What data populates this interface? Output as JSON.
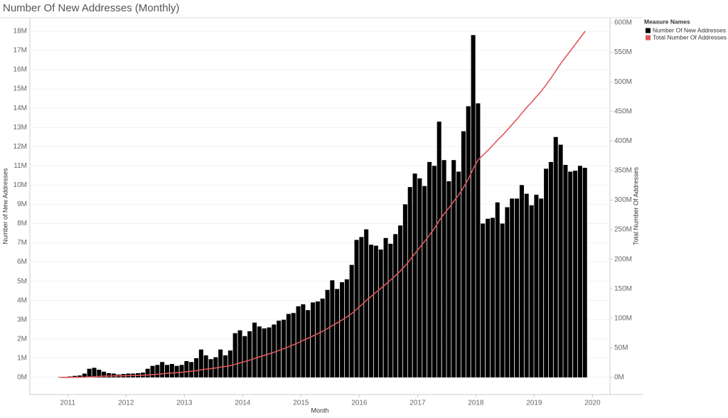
{
  "chart_data": {
    "type": "bar",
    "title": "Number Of New Addresses (Monthly)",
    "x_label": "Month",
    "y_label": "Number of New Addresses",
    "y2_label": "Total Number Of Addresses",
    "legend_title": "Measure Names",
    "legend": "right",
    "grid": true,
    "x": [
      2010.833,
      2010.917,
      2011,
      2011.083,
      2011.167,
      2011.25,
      2011.333,
      2011.417,
      2011.5,
      2011.583,
      2011.667,
      2011.75,
      2011.833,
      2011.917,
      2012,
      2012.083,
      2012.167,
      2012.25,
      2012.333,
      2012.417,
      2012.5,
      2012.583,
      2012.667,
      2012.75,
      2012.833,
      2012.917,
      2013,
      2013.083,
      2013.167,
      2013.25,
      2013.333,
      2013.417,
      2013.5,
      2013.583,
      2013.667,
      2013.75,
      2013.833,
      2013.917,
      2014,
      2014.083,
      2014.167,
      2014.25,
      2014.333,
      2014.417,
      2014.5,
      2014.583,
      2014.667,
      2014.75,
      2014.833,
      2014.917,
      2015,
      2015.083,
      2015.167,
      2015.25,
      2015.333,
      2015.417,
      2015.5,
      2015.583,
      2015.667,
      2015.75,
      2015.833,
      2015.917,
      2016,
      2016.083,
      2016.167,
      2016.25,
      2016.333,
      2016.417,
      2016.5,
      2016.583,
      2016.667,
      2016.75,
      2016.833,
      2016.917,
      2017,
      2017.083,
      2017.167,
      2017.25,
      2017.333,
      2017.417,
      2017.5,
      2017.583,
      2017.667,
      2017.75,
      2017.833,
      2017.917,
      2018,
      2018.083,
      2018.167,
      2018.25,
      2018.333,
      2018.417,
      2018.5,
      2018.583,
      2018.667,
      2018.75,
      2018.833,
      2018.917,
      2019,
      2019.083,
      2019.167,
      2019.25,
      2019.333,
      2019.417,
      2019.5,
      2019.583,
      2019.667,
      2019.75,
      2019.833
    ],
    "xlim": [
      2010.35,
      2020.3
    ],
    "xticks": [
      2011,
      2012,
      2013,
      2014,
      2015,
      2016,
      2017,
      2018,
      2019,
      2020
    ],
    "ylim": [
      -890000,
      18700000
    ],
    "yticks": [
      {
        "value": 0,
        "label": "0M"
      },
      {
        "value": 1000000,
        "label": "1M"
      },
      {
        "value": 2000000,
        "label": "2M"
      },
      {
        "value": 3000000,
        "label": "3M"
      },
      {
        "value": 4000000,
        "label": "4M"
      },
      {
        "value": 5000000,
        "label": "5M"
      },
      {
        "value": 6000000,
        "label": "6M"
      },
      {
        "value": 7000000,
        "label": "7M"
      },
      {
        "value": 8000000,
        "label": "8M"
      },
      {
        "value": 9000000,
        "label": "9M"
      },
      {
        "value": 10000000,
        "label": "10M"
      },
      {
        "value": 11000000,
        "label": "11M"
      },
      {
        "value": 12000000,
        "label": "12M"
      },
      {
        "value": 13000000,
        "label": "13M"
      },
      {
        "value": 14000000,
        "label": "14M"
      },
      {
        "value": 15000000,
        "label": "15M"
      },
      {
        "value": 16000000,
        "label": "16M"
      },
      {
        "value": 17000000,
        "label": "17M"
      },
      {
        "value": 18000000,
        "label": "18M"
      }
    ],
    "y2lim": [
      -28900000,
      608400000
    ],
    "y2ticks": [
      {
        "value": 0,
        "label": "0M"
      },
      {
        "value": 50000000,
        "label": "50M"
      },
      {
        "value": 100000000,
        "label": "100M"
      },
      {
        "value": 150000000,
        "label": "150M"
      },
      {
        "value": 200000000,
        "label": "200M"
      },
      {
        "value": 250000000,
        "label": "250M"
      },
      {
        "value": 300000000,
        "label": "300M"
      },
      {
        "value": 350000000,
        "label": "350M"
      },
      {
        "value": 400000000,
        "label": "400M"
      },
      {
        "value": 450000000,
        "label": "450M"
      },
      {
        "value": 500000000,
        "label": "500M"
      },
      {
        "value": 550000000,
        "label": "550M"
      },
      {
        "value": 600000000,
        "label": "600M"
      }
    ],
    "series": [
      {
        "name": "Number Of New Addresses",
        "type": "bar",
        "color": "#000000",
        "values": [
          20000,
          30000,
          50000,
          80000,
          100000,
          200000,
          450000,
          500000,
          400000,
          300000,
          220000,
          200000,
          150000,
          180000,
          200000,
          200000,
          220000,
          250000,
          450000,
          600000,
          650000,
          800000,
          650000,
          700000,
          600000,
          650000,
          850000,
          800000,
          1000000,
          1450000,
          1150000,
          950000,
          1050000,
          1450000,
          1150000,
          1400000,
          2300000,
          2450000,
          2150000,
          2400000,
          2850000,
          2650000,
          2550000,
          2600000,
          2750000,
          2950000,
          3000000,
          3300000,
          3350000,
          3700000,
          3800000,
          3500000,
          3900000,
          3950000,
          4100000,
          4550000,
          5050000,
          4600000,
          4950000,
          5100000,
          5850000,
          7150000,
          7300000,
          7700000,
          6900000,
          6850000,
          6650000,
          7250000,
          6950000,
          7450000,
          7900000,
          9000000,
          9900000,
          10600000,
          10350000,
          9950000,
          11200000,
          11000000,
          13300000,
          11300000,
          10200000,
          11300000,
          10700000,
          12800000,
          14100000,
          17800000,
          14250000,
          8000000,
          8250000,
          8300000,
          9100000,
          8000000,
          8850000,
          9300000,
          9300000,
          10000000,
          9550000,
          8950000,
          9500000,
          9300000,
          10850000,
          11200000,
          12500000,
          12100000,
          11050000,
          10700000,
          10750000,
          11000000,
          10900000
        ]
      },
      {
        "name": "Total Number Of Addresses",
        "type": "line",
        "axis": "y2",
        "color": "#e15759",
        "values": [
          20000,
          50000,
          100000,
          180000,
          280000,
          480000,
          930000,
          1430000,
          1830000,
          2130000,
          2350000,
          2550000,
          2700000,
          2880000,
          3080000,
          3280000,
          3500000,
          3750000,
          4200000,
          4800000,
          5450000,
          6250000,
          6900000,
          7600000,
          8200000,
          8850000,
          9700000,
          10500000,
          11500000,
          12950000,
          14100000,
          15050000,
          16100000,
          17550000,
          18700000,
          20100000,
          22400000,
          24850000,
          27000000,
          29400000,
          32250000,
          34900000,
          37450000,
          40050000,
          42800000,
          45750000,
          48750000,
          52050000,
          55400000,
          59100000,
          62900000,
          66400000,
          70300000,
          74250000,
          78350000,
          82900000,
          87950000,
          92550000,
          97500000,
          102600000,
          108450000,
          115600000,
          122900000,
          130600000,
          137500000,
          144350000,
          151000000,
          158250000,
          165200000,
          172650000,
          180550000,
          189550000,
          199450000,
          210050000,
          220400000,
          230350000,
          241550000,
          252550000,
          265850000,
          277150000,
          287350000,
          298650000,
          309350000,
          322150000,
          336250000,
          354050000,
          368300000,
          376300000,
          384550000,
          392850000,
          401950000,
          409950000,
          418800000,
          428100000,
          437400000,
          447400000,
          456950000,
          465900000,
          475400000,
          484700000,
          495550000,
          506750000,
          519250000,
          531350000,
          542400000,
          553100000,
          563850000,
          574850000,
          585750000
        ]
      }
    ]
  }
}
